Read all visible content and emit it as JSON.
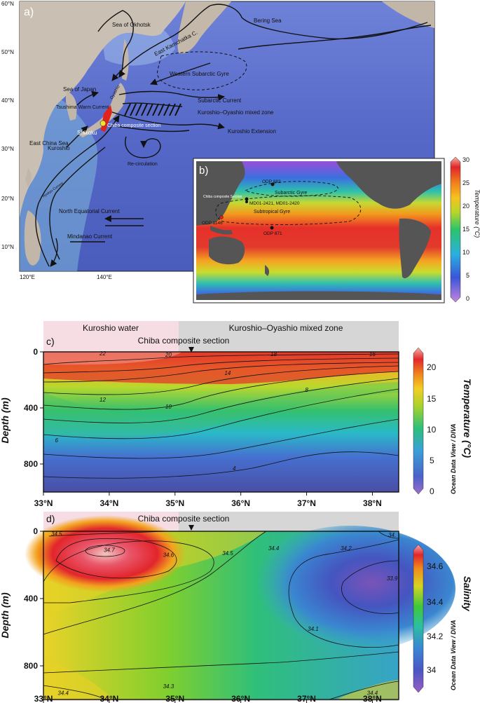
{
  "panel_a": {
    "label": "a)",
    "lat_ticks": [
      "60°N",
      "50°N",
      "40°N",
      "30°N",
      "20°N",
      "10°N"
    ],
    "lon_ticks": [
      "120°E",
      "140°E"
    ],
    "labels": {
      "okhotsk": "Sea of Okhotsk",
      "bering": "Bering Sea",
      "east_kamchatka": "East Kamchatka C.",
      "wsg": "Western Subarctic Gyre",
      "sea_of_japan": "Sea of Japan",
      "oyashio": "Oyashio",
      "subarctic_current": "Subarctic Current",
      "tsushima": "Tsushima Warm Current",
      "mixed_zone": "Kuroshio–Oyashio mixed zone",
      "shikoku": "Shikoku",
      "chiba": "Chiba composite section",
      "kuroshio_ext": "Kuroshio Extension",
      "east_china_sea": "East China Sea",
      "kuroshio": "Kuroshio",
      "recirculation": "Re-circulation",
      "ryukyu": "Ryukyu Current",
      "nec": "North Equatorial Current",
      "mindanao": "Mindanao Current"
    }
  },
  "panel_b": {
    "label": "b)",
    "sites": {
      "odp882": "ODP 882",
      "chiba": "Chiba composite Section",
      "md01": "MD01-2421, MD01-2420",
      "odp1146": "ODP 1146",
      "odp871": "ODP 871"
    },
    "gyres": {
      "subarctic": "Subarctic Gyre",
      "subtropical": "Subtropical Gyre"
    },
    "colorbar": {
      "label": "Temperature (°C)",
      "ticks": [
        "30",
        "25",
        "20",
        "15",
        "10",
        "5",
        "0"
      ]
    }
  },
  "panel_c": {
    "label": "c)",
    "header_kuroshio": "Kuroshio water",
    "header_mixed": "Kuroshio–Oyashio mixed zone",
    "section_label": "Chiba composite section",
    "ylabel": "Depth (m)",
    "colorbar_title": "Temperature (°C)",
    "colorbar_source": "Ocean Data View / DIVA",
    "colorbar_ticks": [
      "20",
      "15",
      "10",
      "5",
      "0"
    ]
  },
  "panel_d": {
    "label": "d)",
    "section_label": "Chiba composite section",
    "ylabel": "Depth (m)",
    "colorbar_title": "Salinity",
    "colorbar_source": "Ocean Data View / DIVA",
    "colorbar_ticks": [
      "34.6",
      "34.4",
      "34.2",
      "34"
    ]
  },
  "chart_data": [
    {
      "type": "heatmap",
      "panel": "c",
      "variable": "Temperature",
      "unit": "°C",
      "x_ticks": [
        "33°N",
        "34°N",
        "35°N",
        "36°N",
        "37°N",
        "38°N"
      ],
      "xlim": [
        33,
        38.4
      ],
      "y_ticks": [
        "0",
        "400",
        "800"
      ],
      "ylim": [
        0,
        1000
      ],
      "ylabel": "Depth (m)",
      "colorbar_range": [
        0,
        22
      ],
      "contour_labels": [
        {
          "value": "22",
          "lat": 33.9,
          "depth": 10
        },
        {
          "value": "20",
          "lat": 34.9,
          "depth": 20
        },
        {
          "value": "18",
          "lat": 36.5,
          "depth": 15
        },
        {
          "value": "16",
          "lat": 38.0,
          "depth": 15
        },
        {
          "value": "14",
          "lat": 35.8,
          "depth": 150
        },
        {
          "value": "12",
          "lat": 33.9,
          "depth": 340
        },
        {
          "value": "10",
          "lat": 34.9,
          "depth": 390
        },
        {
          "value": "8",
          "lat": 37.0,
          "depth": 270
        },
        {
          "value": "6",
          "lat": 33.2,
          "depth": 630
        },
        {
          "value": "4",
          "lat": 35.9,
          "depth": 830
        }
      ]
    },
    {
      "type": "heatmap",
      "panel": "d",
      "variable": "Salinity",
      "unit": "",
      "x_ticks": [
        "33°N",
        "34°N",
        "35°N",
        "36°N",
        "37°N",
        "38°N"
      ],
      "xlim": [
        33,
        38.4
      ],
      "y_ticks": [
        "0",
        "400",
        "800"
      ],
      "ylim": [
        0,
        1000
      ],
      "ylabel": "Depth (m)",
      "colorbar_range": [
        33.9,
        34.7
      ],
      "contour_labels": [
        {
          "value": "34.5",
          "lat": 33.2,
          "depth": 15
        },
        {
          "value": "34.7",
          "lat": 34.0,
          "depth": 110
        },
        {
          "value": "34.6",
          "lat": 34.9,
          "depth": 140
        },
        {
          "value": "34.5",
          "lat": 35.8,
          "depth": 130
        },
        {
          "value": "34.4",
          "lat": 36.5,
          "depth": 100
        },
        {
          "value": "34.2",
          "lat": 37.6,
          "depth": 100
        },
        {
          "value": "34.",
          "lat": 38.3,
          "depth": 20
        },
        {
          "value": "33.9",
          "lat": 38.3,
          "depth": 280
        },
        {
          "value": "34.1",
          "lat": 37.1,
          "depth": 580
        },
        {
          "value": "34.3",
          "lat": 34.9,
          "depth": 920
        },
        {
          "value": "34.4",
          "lat": 33.3,
          "depth": 960
        },
        {
          "value": "34.4",
          "lat": 38.0,
          "depth": 960
        }
      ]
    }
  ]
}
